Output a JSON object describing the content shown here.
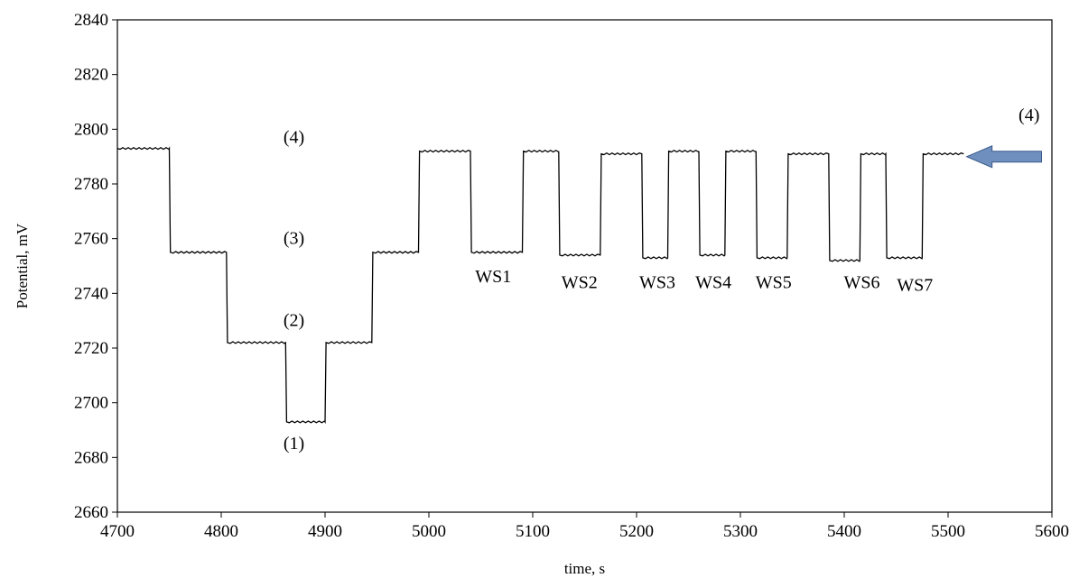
{
  "chart_data": {
    "type": "line",
    "xlabel": "time, s",
    "ylabel": "Potential, mV",
    "xlim": [
      4700,
      5600
    ],
    "ylim": [
      2660,
      2840
    ],
    "xticks": [
      4700,
      4800,
      4900,
      5000,
      5100,
      5200,
      5300,
      5400,
      5500,
      5600
    ],
    "yticks": [
      2660,
      2680,
      2700,
      2720,
      2740,
      2760,
      2780,
      2800,
      2820,
      2840
    ],
    "grid": false,
    "legend": "none",
    "series": [
      {
        "color": "#000000",
        "x": [
          4700,
          4750,
          4751,
          4805,
          4806,
          4862,
          4863,
          4900,
          4901,
          4945,
          4946,
          4990,
          4991,
          5040,
          5041,
          5090,
          5091,
          5125,
          5126,
          5165,
          5166,
          5205,
          5206,
          5230,
          5231,
          5260,
          5261,
          5285,
          5286,
          5315,
          5316,
          5345,
          5346,
          5385,
          5386,
          5415,
          5416,
          5440,
          5441,
          5475,
          5476,
          5515
        ],
        "y": [
          2793,
          2793,
          2755,
          2755,
          2722,
          2722,
          2693,
          2693,
          2722,
          2722,
          2755,
          2755,
          2792,
          2792,
          2755,
          2755,
          2792,
          2792,
          2754,
          2754,
          2791,
          2791,
          2753,
          2753,
          2792,
          2792,
          2754,
          2754,
          2792,
          2792,
          2753,
          2753,
          2791,
          2791,
          2752,
          2752,
          2791,
          2791,
          2753,
          2753,
          2791,
          2791
        ]
      }
    ],
    "annotations": [
      {
        "text": "(4)",
        "x": 4870,
        "y": 2795
      },
      {
        "text": "(3)",
        "x": 4870,
        "y": 2758
      },
      {
        "text": "(2)",
        "x": 4870,
        "y": 2728
      },
      {
        "text": "(1)",
        "x": 4870,
        "y": 2683
      },
      {
        "text": "WS1",
        "x": 5062,
        "y": 2744
      },
      {
        "text": "WS2",
        "x": 5145,
        "y": 2742
      },
      {
        "text": "WS3",
        "x": 5220,
        "y": 2742
      },
      {
        "text": "WS4",
        "x": 5274,
        "y": 2742
      },
      {
        "text": "WS5",
        "x": 5332,
        "y": 2742
      },
      {
        "text": "WS6",
        "x": 5417,
        "y": 2742
      },
      {
        "text": "WS7",
        "x": 5468,
        "y": 2741
      },
      {
        "text": "(4)",
        "x": 5578,
        "y": 2803
      }
    ],
    "arrow": {
      "from_x": 5590,
      "to_x": 5518,
      "y": 2790,
      "color": "#6f8fbf",
      "stroke": "#3a5a8a"
    }
  }
}
